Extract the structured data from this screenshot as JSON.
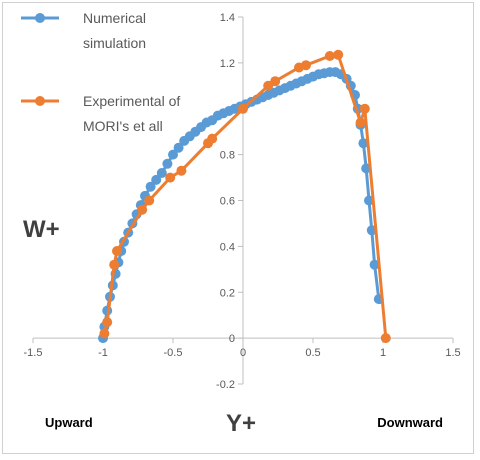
{
  "chart_data": {
    "type": "scatter",
    "title": "",
    "xlabel": "Y+",
    "ylabel": "W+",
    "xlim": [
      -1.5,
      1.5
    ],
    "ylim": [
      -0.2,
      1.4
    ],
    "x_ticks": [
      "-1.5",
      "-1",
      "-0.5",
      "0",
      "0.5",
      "1",
      "1.5"
    ],
    "y_ticks": [
      "-0.2",
      "0",
      "0.2",
      "0.4",
      "0.6",
      "0.8",
      "1",
      "1.2",
      "1.4"
    ],
    "grid": false,
    "legend_position": "top-left",
    "annotations": {
      "left": "Upward",
      "right": "Downward"
    },
    "series": [
      {
        "name": "Numerical simulation",
        "color": "#5b9bd5",
        "points": [
          [
            -1.0,
            0.0
          ],
          [
            -0.99,
            0.05
          ],
          [
            -0.97,
            0.12
          ],
          [
            -0.95,
            0.18
          ],
          [
            -0.93,
            0.23
          ],
          [
            -0.91,
            0.28
          ],
          [
            -0.89,
            0.33
          ],
          [
            -0.87,
            0.38
          ],
          [
            -0.85,
            0.42
          ],
          [
            -0.82,
            0.46
          ],
          [
            -0.79,
            0.5
          ],
          [
            -0.76,
            0.54
          ],
          [
            -0.73,
            0.58
          ],
          [
            -0.7,
            0.62
          ],
          [
            -0.66,
            0.66
          ],
          [
            -0.62,
            0.69
          ],
          [
            -0.58,
            0.72
          ],
          [
            -0.54,
            0.76
          ],
          [
            -0.5,
            0.8
          ],
          [
            -0.46,
            0.83
          ],
          [
            -0.42,
            0.86
          ],
          [
            -0.38,
            0.88
          ],
          [
            -0.34,
            0.9
          ],
          [
            -0.3,
            0.92
          ],
          [
            -0.26,
            0.94
          ],
          [
            -0.22,
            0.95
          ],
          [
            -0.18,
            0.97
          ],
          [
            -0.14,
            0.98
          ],
          [
            -0.1,
            0.99
          ],
          [
            -0.06,
            1.0
          ],
          [
            -0.02,
            1.01
          ],
          [
            0.02,
            1.02
          ],
          [
            0.06,
            1.03
          ],
          [
            0.1,
            1.04
          ],
          [
            0.14,
            1.05
          ],
          [
            0.18,
            1.06
          ],
          [
            0.22,
            1.07
          ],
          [
            0.26,
            1.08
          ],
          [
            0.3,
            1.09
          ],
          [
            0.34,
            1.1
          ],
          [
            0.38,
            1.11
          ],
          [
            0.42,
            1.12
          ],
          [
            0.46,
            1.13
          ],
          [
            0.5,
            1.14
          ],
          [
            0.54,
            1.15
          ],
          [
            0.58,
            1.155
          ],
          [
            0.62,
            1.16
          ],
          [
            0.66,
            1.16
          ],
          [
            0.7,
            1.15
          ],
          [
            0.74,
            1.13
          ],
          [
            0.77,
            1.1
          ],
          [
            0.8,
            1.06
          ],
          [
            0.82,
            1.0
          ],
          [
            0.84,
            0.93
          ],
          [
            0.86,
            0.85
          ],
          [
            0.88,
            0.74
          ],
          [
            0.9,
            0.6
          ],
          [
            0.92,
            0.47
          ],
          [
            0.94,
            0.32
          ],
          [
            0.97,
            0.17
          ]
        ]
      },
      {
        "name": "Experimental of MORI's et all",
        "color": "#ed7d31",
        "points": [
          [
            -0.99,
            0.02
          ],
          [
            -0.97,
            0.07
          ],
          [
            -0.92,
            0.32
          ],
          [
            -0.9,
            0.38
          ],
          [
            -0.72,
            0.56
          ],
          [
            -0.67,
            0.6
          ],
          [
            -0.52,
            0.7
          ],
          [
            -0.44,
            0.73
          ],
          [
            -0.25,
            0.85
          ],
          [
            -0.22,
            0.87
          ],
          [
            0.0,
            1.0
          ],
          [
            0.18,
            1.1
          ],
          [
            0.23,
            1.12
          ],
          [
            0.4,
            1.18
          ],
          [
            0.45,
            1.19
          ],
          [
            0.62,
            1.23
          ],
          [
            0.68,
            1.235
          ],
          [
            0.84,
            0.94
          ],
          [
            0.87,
            1.0
          ],
          [
            1.02,
            0.0
          ]
        ]
      }
    ]
  }
}
